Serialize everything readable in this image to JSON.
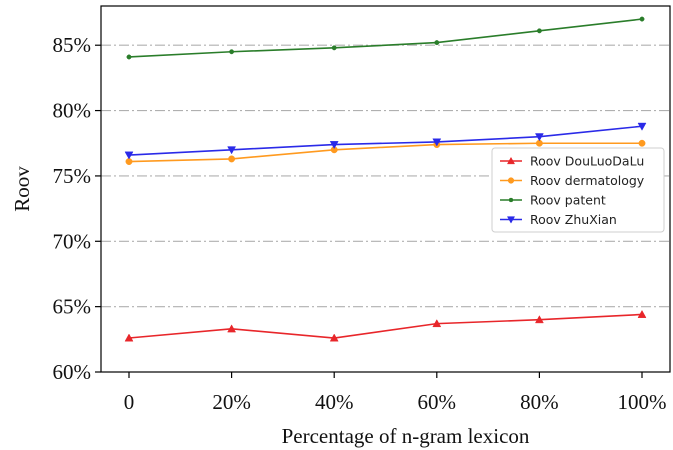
{
  "chart_data": {
    "type": "line",
    "xlabel": "Percentage of n-gram lexicon",
    "ylabel": "Roov",
    "categories": [
      "0",
      "20%",
      "40%",
      "60%",
      "80%",
      "100%"
    ],
    "x": [
      0,
      20,
      40,
      60,
      80,
      100
    ],
    "ylim": [
      60,
      88
    ],
    "yticks": [
      60,
      65,
      70,
      75,
      80,
      85
    ],
    "ytick_labels": [
      "60%",
      "65%",
      "70%",
      "75%",
      "80%",
      "85%"
    ],
    "grid": "horizontal dash-dot",
    "legend_position": "center-right",
    "series": [
      {
        "name": "Roov DouLuoDaLu",
        "color": "#e8262a",
        "marker": "triangle-up",
        "values": [
          62.6,
          63.3,
          62.6,
          63.7,
          64.0,
          64.4
        ]
      },
      {
        "name": "Roov dermatology",
        "color": "#ff9a1f",
        "marker": "circle",
        "values": [
          76.1,
          76.3,
          77.0,
          77.4,
          77.5,
          77.5
        ]
      },
      {
        "name": "Roov patent",
        "color": "#2a7d2a",
        "marker": "dot",
        "values": [
          84.1,
          84.5,
          84.8,
          85.2,
          86.1,
          87.0
        ]
      },
      {
        "name": "Roov ZhuXian",
        "color": "#2a2ae8",
        "marker": "triangle-down",
        "values": [
          76.6,
          77.0,
          77.4,
          77.6,
          78.0,
          78.8
        ]
      }
    ]
  }
}
